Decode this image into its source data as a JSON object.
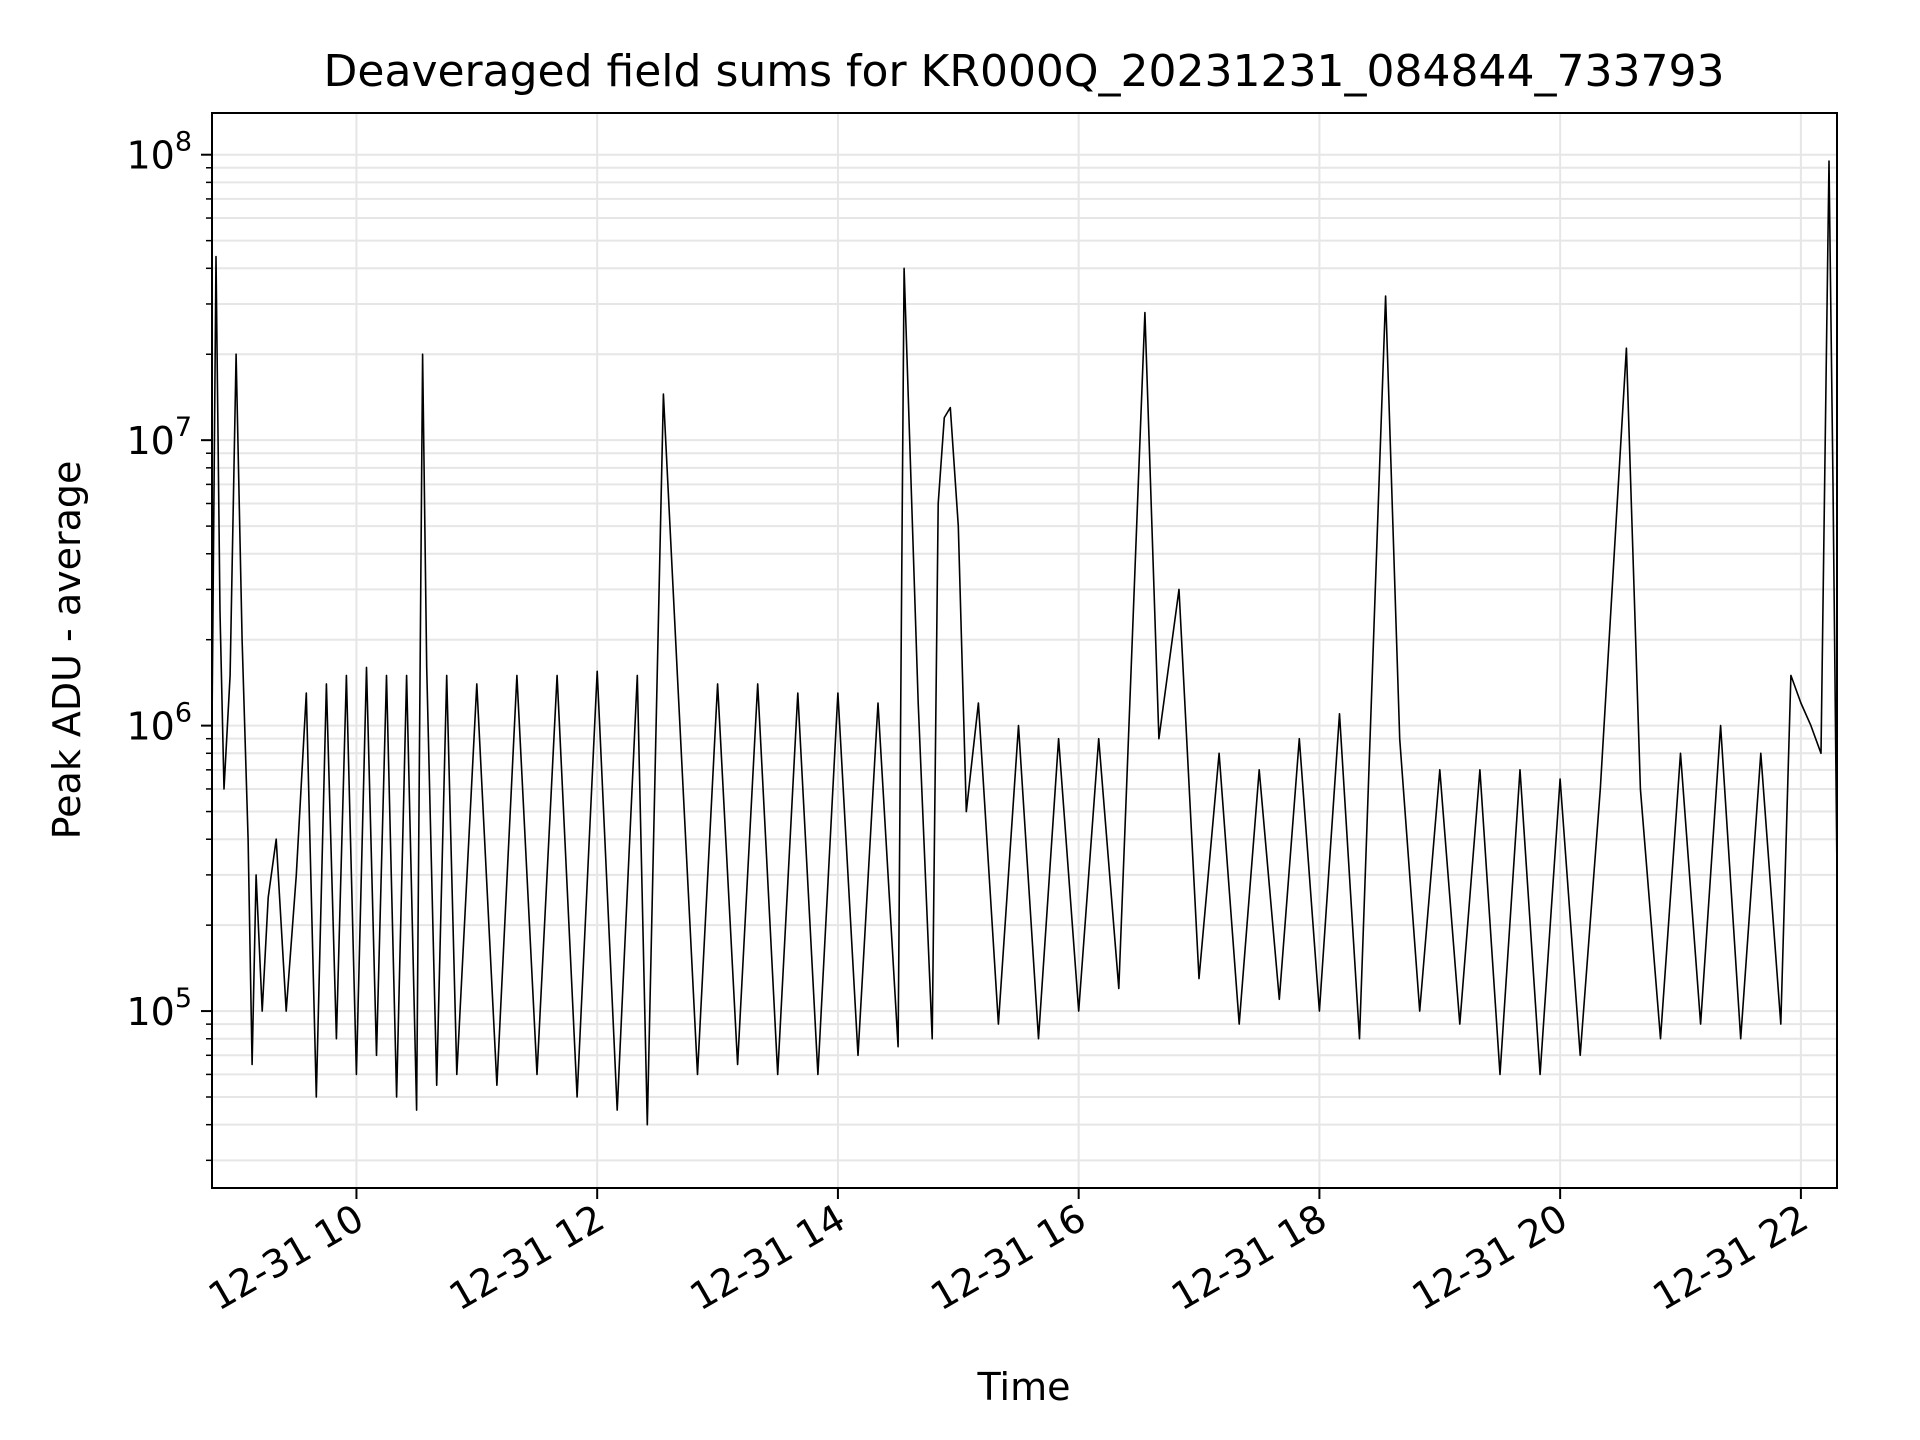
{
  "chart_data": {
    "type": "line",
    "title": "Deaveraged field sums for KR000Q_20231231_084844_733793",
    "xlabel": "Time",
    "ylabel": "Peak ADU - average",
    "yscale": "log",
    "ylim": [
      24000,
      140000000
    ],
    "xlim": [
      "2023-12-31 08:48",
      "2023-12-31 22:18"
    ],
    "grid": true,
    "line_color": "#000000",
    "x_ticks": [
      {
        "value": "2023-12-31 10:00",
        "label": "12-31 10"
      },
      {
        "value": "2023-12-31 12:00",
        "label": "12-31 12"
      },
      {
        "value": "2023-12-31 14:00",
        "label": "12-31 14"
      },
      {
        "value": "2023-12-31 16:00",
        "label": "12-31 16"
      },
      {
        "value": "2023-12-31 18:00",
        "label": "12-31 18"
      },
      {
        "value": "2023-12-31 20:00",
        "label": "12-31 20"
      },
      {
        "value": "2023-12-31 22:00",
        "label": "12-31 22"
      }
    ],
    "y_ticks": [
      {
        "value": 100000,
        "base": "10",
        "exp": "5"
      },
      {
        "value": 1000000,
        "base": "10",
        "exp": "6"
      },
      {
        "value": 10000000,
        "base": "10",
        "exp": "7"
      },
      {
        "value": 100000000,
        "base": "10",
        "exp": "8"
      }
    ],
    "series": [
      {
        "x": [
          "2023-12-31 08:48",
          "2023-12-31 08:50",
          "2023-12-31 08:52",
          "2023-12-31 08:54",
          "2023-12-31 08:57",
          "2023-12-31 09:00",
          "2023-12-31 09:03",
          "2023-12-31 09:06",
          "2023-12-31 09:08",
          "2023-12-31 09:10",
          "2023-12-31 09:13",
          "2023-12-31 09:16",
          "2023-12-31 09:20",
          "2023-12-31 09:25",
          "2023-12-31 09:30",
          "2023-12-31 09:35",
          "2023-12-31 09:40",
          "2023-12-31 09:45",
          "2023-12-31 09:50",
          "2023-12-31 09:55",
          "2023-12-31 10:00",
          "2023-12-31 10:05",
          "2023-12-31 10:10",
          "2023-12-31 10:15",
          "2023-12-31 10:20",
          "2023-12-31 10:25",
          "2023-12-31 10:30",
          "2023-12-31 10:33",
          "2023-12-31 10:35",
          "2023-12-31 10:40",
          "2023-12-31 10:45",
          "2023-12-31 10:50",
          "2023-12-31 11:00",
          "2023-12-31 11:10",
          "2023-12-31 11:20",
          "2023-12-31 11:30",
          "2023-12-31 11:40",
          "2023-12-31 11:50",
          "2023-12-31 12:00",
          "2023-12-31 12:10",
          "2023-12-31 12:20",
          "2023-12-31 12:25",
          "2023-12-31 12:33",
          "2023-12-31 12:40",
          "2023-12-31 12:50",
          "2023-12-31 13:00",
          "2023-12-31 13:10",
          "2023-12-31 13:20",
          "2023-12-31 13:30",
          "2023-12-31 13:40",
          "2023-12-31 13:50",
          "2023-12-31 14:00",
          "2023-12-31 14:10",
          "2023-12-31 14:20",
          "2023-12-31 14:30",
          "2023-12-31 14:33",
          "2023-12-31 14:40",
          "2023-12-31 14:47",
          "2023-12-31 14:50",
          "2023-12-31 14:53",
          "2023-12-31 14:56",
          "2023-12-31 15:00",
          "2023-12-31 15:04",
          "2023-12-31 15:10",
          "2023-12-31 15:20",
          "2023-12-31 15:30",
          "2023-12-31 15:40",
          "2023-12-31 15:50",
          "2023-12-31 16:00",
          "2023-12-31 16:10",
          "2023-12-31 16:20",
          "2023-12-31 16:33",
          "2023-12-31 16:40",
          "2023-12-31 16:50",
          "2023-12-31 17:00",
          "2023-12-31 17:10",
          "2023-12-31 17:20",
          "2023-12-31 17:30",
          "2023-12-31 17:40",
          "2023-12-31 17:50",
          "2023-12-31 18:00",
          "2023-12-31 18:10",
          "2023-12-31 18:20",
          "2023-12-31 18:33",
          "2023-12-31 18:40",
          "2023-12-31 18:50",
          "2023-12-31 19:00",
          "2023-12-31 19:10",
          "2023-12-31 19:20",
          "2023-12-31 19:30",
          "2023-12-31 19:40",
          "2023-12-31 19:50",
          "2023-12-31 20:00",
          "2023-12-31 20:10",
          "2023-12-31 20:20",
          "2023-12-31 20:33",
          "2023-12-31 20:40",
          "2023-12-31 20:50",
          "2023-12-31 21:00",
          "2023-12-31 21:10",
          "2023-12-31 21:20",
          "2023-12-31 21:30",
          "2023-12-31 21:40",
          "2023-12-31 21:50",
          "2023-12-31 21:55",
          "2023-12-31 22:00",
          "2023-12-31 22:05",
          "2023-12-31 22:10",
          "2023-12-31 22:14",
          "2023-12-31 22:16",
          "2023-12-31 22:18"
        ],
        "y": [
          1000000,
          44000000,
          2500000,
          600000,
          1500000,
          20000000,
          2000000,
          400000,
          65000,
          300000,
          100000,
          250000,
          400000,
          100000,
          300000,
          1300000,
          50000,
          1400000,
          80000,
          1500000,
          60000,
          1600000,
          70000,
          1500000,
          50000,
          1500000,
          45000,
          20000000,
          1600000,
          55000,
          1500000,
          60000,
          1400000,
          55000,
          1500000,
          60000,
          1500000,
          50000,
          1550000,
          45000,
          1500000,
          40000,
          14500000,
          1500000,
          60000,
          1400000,
          65000,
          1400000,
          60000,
          1300000,
          60000,
          1300000,
          70000,
          1200000,
          75000,
          40000000,
          1200000,
          80000,
          6000000,
          12000000,
          13000000,
          5000000,
          500000,
          1200000,
          90000,
          1000000,
          80000,
          900000,
          100000,
          900000,
          120000,
          28000000,
          900000,
          3000000,
          130000,
          800000,
          90000,
          700000,
          110000,
          900000,
          100000,
          1100000,
          80000,
          32000000,
          900000,
          100000,
          700000,
          90000,
          700000,
          60000,
          700000,
          60000,
          650000,
          70000,
          600000,
          21000000,
          600000,
          80000,
          800000,
          90000,
          1000000,
          80000,
          800000,
          90000,
          1500000,
          1200000,
          1000000,
          800000,
          95000000,
          7000000,
          300000
        ]
      }
    ]
  }
}
